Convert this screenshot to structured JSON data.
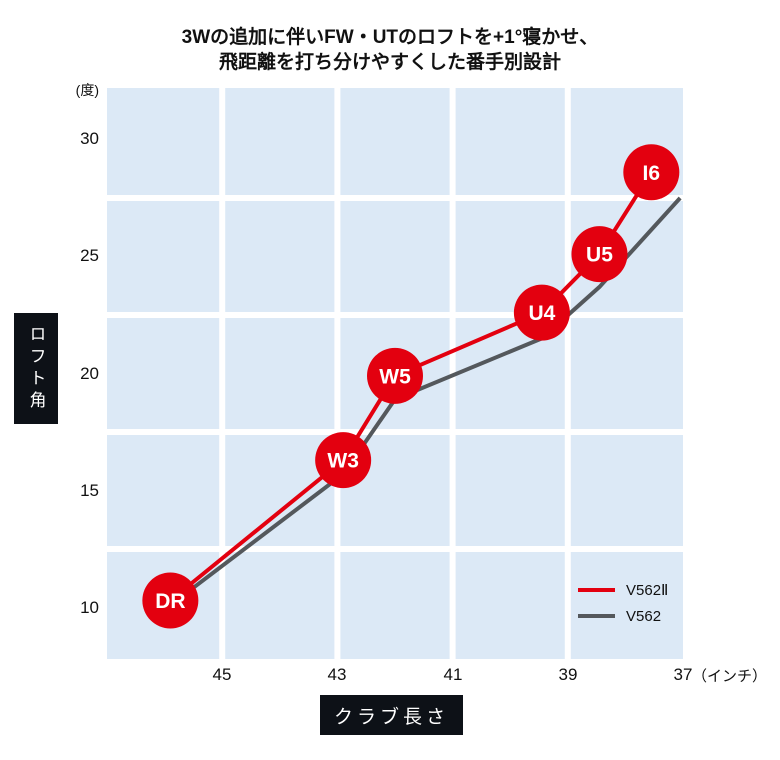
{
  "title": {
    "line1": "3Wの追加に伴いFW・UTのロフトを+1°寝かせ、",
    "line2": "飛距離を打ち分けやすくした番手別設計"
  },
  "colors": {
    "plot_bg": "#dce9f6",
    "grid": "#ffffff",
    "accent_red": "#e3000f",
    "line_gray": "#54585c",
    "label_box_bg": "#0d1117",
    "text": "#111111",
    "marker_text": "#ffffff"
  },
  "chart_data": {
    "type": "line",
    "title": "3Wの追加に伴いFW・UTのロフトを+1°寝かせ、飛距離を打ち分けやすくした番手別設計",
    "xlabel": "クラブ長さ",
    "ylabel": "ロフト角",
    "x_unit": "（インチ）",
    "y_unit": "(度)",
    "x_ticks": [
      45,
      43,
      41,
      39,
      37
    ],
    "y_ticks": [
      30,
      25,
      20,
      15,
      10
    ],
    "x_range": [
      47,
      37
    ],
    "y_range": [
      7.8,
      32.2
    ],
    "x_gridlines": [
      45,
      43,
      41,
      39
    ],
    "y_gridlines": [
      27.5,
      22.5,
      17.5,
      12.5
    ],
    "grid": true,
    "legend_position": "inside-bottom-right",
    "series": [
      {
        "name": "V562Ⅱ",
        "color": "#e3000f",
        "marker": "labeled-circle",
        "points": [
          {
            "label": "DR",
            "x": 45.9,
            "y": 10.3
          },
          {
            "label": "W3",
            "x": 42.9,
            "y": 16.3
          },
          {
            "label": "W5",
            "x": 42.0,
            "y": 19.9
          },
          {
            "label": "U4",
            "x": 39.45,
            "y": 22.6
          },
          {
            "label": "U5",
            "x": 38.45,
            "y": 25.1
          },
          {
            "label": "I6",
            "x": 37.55,
            "y": 28.6
          }
        ]
      },
      {
        "name": "V562",
        "color": "#54585c",
        "marker": "none",
        "points": [
          {
            "x": 45.9,
            "y": 10.1
          },
          {
            "x": 42.9,
            "y": 15.7
          },
          {
            "x": 42.0,
            "y": 18.9
          },
          {
            "x": 39.45,
            "y": 21.5
          },
          {
            "x": 38.45,
            "y": 23.7
          },
          {
            "x": 37.05,
            "y": 27.5
          }
        ]
      }
    ]
  }
}
